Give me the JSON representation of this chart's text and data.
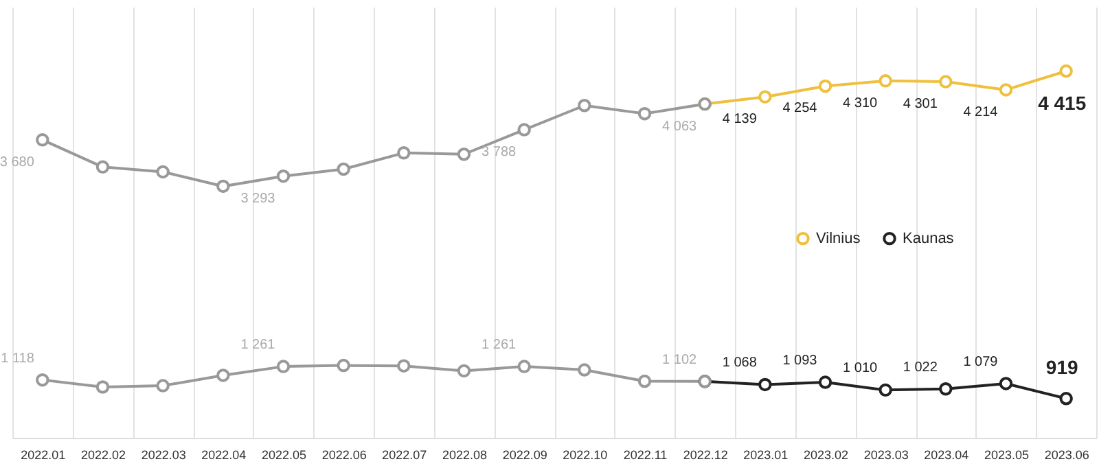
{
  "chart_data": {
    "type": "line",
    "categories": [
      "2022.01",
      "2022.02",
      "2022.03",
      "2022.04",
      "2022.05",
      "2022.06",
      "2022.07",
      "2022.08",
      "2022.09",
      "2022.10",
      "2022.11",
      "2022.12",
      "2023.01",
      "2023.02",
      "2023.03",
      "2023.04",
      "2023.05",
      "2023.06"
    ],
    "series": [
      {
        "name": "Vilnius",
        "color": "#efc03e",
        "values": [
          null,
          null,
          null,
          null,
          null,
          null,
          null,
          null,
          null,
          null,
          null,
          4063,
          4139,
          4254,
          4310,
          4301,
          4214,
          4415
        ],
        "value_labels": [
          null,
          null,
          null,
          null,
          null,
          null,
          null,
          null,
          null,
          null,
          null,
          null,
          "4 139",
          "4 254",
          "4 310",
          "4 301",
          "4 214",
          "4 415"
        ]
      },
      {
        "name": "Kaunas",
        "color": "#222222",
        "values": [
          null,
          null,
          null,
          null,
          null,
          null,
          null,
          null,
          null,
          null,
          null,
          1102,
          1068,
          1093,
          1010,
          1022,
          1079,
          919
        ],
        "value_labels": [
          null,
          null,
          null,
          null,
          null,
          null,
          null,
          null,
          null,
          null,
          null,
          null,
          "1 068",
          "1 093",
          "1 010",
          "1 022",
          "1 079",
          "919"
        ]
      },
      {
        "color": "#999999",
        "values": [
          3680,
          3391,
          3339,
          3185,
          3293,
          3368,
          3541,
          3527,
          3788,
          4047,
          3960,
          4063,
          null,
          null,
          null,
          null,
          null,
          null
        ],
        "value_labels": [
          "3 680",
          null,
          null,
          null,
          "3 293",
          null,
          null,
          null,
          "3 788",
          null,
          null,
          "4 063",
          null,
          null,
          null,
          null,
          null,
          null
        ]
      },
      {
        "color": "#999999",
        "values": [
          1118,
          1042,
          1056,
          1167,
          1261,
          1272,
          1268,
          1215,
          1261,
          1225,
          1104,
          1102,
          null,
          null,
          null,
          null,
          null,
          null
        ],
        "value_labels": [
          "1 118",
          null,
          null,
          null,
          "1 261",
          null,
          null,
          null,
          "1 261",
          null,
          null,
          "1 102",
          null,
          null,
          null,
          null,
          null,
          null
        ]
      }
    ],
    "ylim": [
      500,
      5100
    ],
    "tick_labels": "x",
    "grid": "x",
    "legend": "right",
    "marker": "circle",
    "line_style": "solid"
  }
}
